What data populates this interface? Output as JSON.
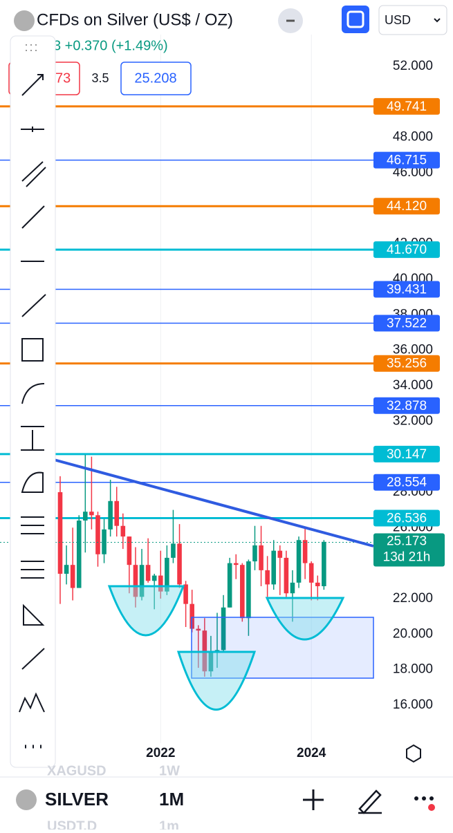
{
  "header": {
    "title": "CFDs on Silver (US$ / OZ)",
    "change": "3 +0.370 (+1.49%)",
    "bid": "73",
    "spread": "3.5",
    "ask": "25.208",
    "currency": "USD"
  },
  "chart_data": {
    "type": "candlestick",
    "categories": [
      null,
      null,
      null,
      null,
      null,
      null,
      null,
      null,
      null,
      null,
      null,
      null,
      null,
      null,
      null,
      null,
      "2022",
      null,
      null,
      null,
      null,
      null,
      null,
      null,
      null,
      null,
      null,
      null,
      null,
      null,
      null,
      null,
      null,
      null,
      null,
      null,
      null,
      null,
      null,
      null,
      "2024",
      null,
      null
    ],
    "open": [
      28.0,
      23.4,
      23.9,
      22.6,
      26.4,
      26.9,
      26.7,
      24.5,
      25.9,
      27.5,
      26.1,
      25.5,
      23.9,
      22.1,
      23.9,
      23.0,
      23.3,
      22.4,
      24.3,
      25.1,
      22.8,
      21.7,
      20.3,
      20.2,
      17.9,
      19.0,
      19.1,
      21.5,
      24.0,
      23.9,
      20.9,
      24.1,
      25.0,
      23.6,
      22.8,
      24.7,
      24.3,
      22.3,
      22.9,
      25.3,
      24.0,
      22.9,
      22.7
    ],
    "high": [
      28.9,
      25.0,
      26.0,
      26.7,
      30.1,
      30.0,
      26.9,
      26.5,
      28.7,
      28.3,
      26.8,
      25.5,
      24.9,
      24.8,
      25.4,
      23.4,
      24.7,
      25.0,
      27.0,
      26.2,
      23.0,
      22.5,
      20.5,
      20.9,
      19.9,
      21.2,
      22.2,
      24.3,
      24.5,
      24.0,
      24.2,
      26.1,
      26.1,
      24.4,
      25.3,
      25.0,
      24.7,
      23.6,
      25.5,
      26.0,
      24.1,
      23.3,
      25.3
    ],
    "low": [
      21.7,
      22.8,
      21.9,
      22.6,
      24.6,
      25.9,
      23.8,
      24.0,
      25.5,
      25.5,
      24.8,
      22.3,
      21.5,
      21.9,
      22.9,
      21.4,
      22.0,
      22.2,
      24.0,
      22.6,
      20.4,
      20.1,
      18.1,
      17.6,
      17.6,
      18.1,
      19.0,
      21.5,
      23.1,
      20.7,
      19.9,
      23.6,
      22.7,
      22.1,
      22.5,
      22.2,
      22.1,
      20.7,
      22.6,
      23.1,
      21.9,
      21.9,
      22.5
    ],
    "close": [
      23.4,
      23.9,
      22.6,
      26.4,
      26.9,
      26.7,
      24.5,
      25.9,
      27.5,
      26.1,
      25.5,
      23.9,
      22.1,
      23.9,
      23.0,
      23.3,
      22.4,
      24.3,
      25.1,
      22.8,
      21.7,
      20.3,
      20.2,
      17.9,
      19.0,
      19.1,
      21.5,
      24.0,
      23.9,
      20.9,
      24.1,
      25.0,
      23.6,
      22.8,
      24.7,
      24.3,
      22.3,
      22.9,
      25.3,
      24.0,
      22.9,
      22.7,
      25.2
    ],
    "up_color": "#089981",
    "down_color": "#f23645",
    "ylim": [
      14.05,
      53.79
    ],
    "yticks": [
      {
        "value": 16,
        "label": "16.000"
      },
      {
        "value": 18,
        "label": "18.000"
      },
      {
        "value": 20,
        "label": "20.000"
      },
      {
        "value": 22,
        "label": "22.000"
      },
      {
        "value": 26,
        "label": "26.000"
      },
      {
        "value": 28,
        "label": "28.000"
      },
      {
        "value": 32,
        "label": "32.000"
      },
      {
        "value": 34,
        "label": "34.000"
      },
      {
        "value": 36,
        "label": "36.000"
      },
      {
        "value": 38,
        "label": "38.000"
      },
      {
        "value": 40,
        "label": "40.000"
      },
      {
        "value": 42,
        "label": "42.000"
      },
      {
        "value": 46,
        "label": "46.000"
      },
      {
        "value": 48,
        "label": "48.000"
      },
      {
        "value": 52,
        "label": "52.000"
      }
    ],
    "levels": [
      {
        "value": 49.741,
        "label": "49.741",
        "color": "#f57c00"
      },
      {
        "value": 46.715,
        "label": "46.715",
        "color": "#2962ff"
      },
      {
        "value": 44.12,
        "label": "44.120",
        "color": "#f57c00"
      },
      {
        "value": 41.67,
        "label": "41.670",
        "color": "#00bcd4"
      },
      {
        "value": 39.431,
        "label": "39.431",
        "color": "#2962ff"
      },
      {
        "value": 37.522,
        "label": "37.522",
        "color": "#2962ff"
      },
      {
        "value": 35.256,
        "label": "35.256",
        "color": "#f57c00"
      },
      {
        "value": 32.878,
        "label": "32.878",
        "color": "#2962ff"
      },
      {
        "value": 30.147,
        "label": "30.147",
        "color": "#00bcd4"
      },
      {
        "value": 28.554,
        "label": "28.554",
        "color": "#2962ff"
      },
      {
        "value": 26.536,
        "label": "26.536",
        "color": "#00bcd4"
      }
    ],
    "last_price": {
      "value": 25.173,
      "label": "25.173",
      "countdown": "13d 21h",
      "color": "#089981"
    }
  },
  "footer": {
    "symbol": "SILVER",
    "interval": "1M",
    "ghost_symbol_1": "XAGUSD",
    "ghost_interval_1": "1W",
    "ghost_symbol_2": "USDT.D",
    "ghost_interval_2": "1m"
  }
}
